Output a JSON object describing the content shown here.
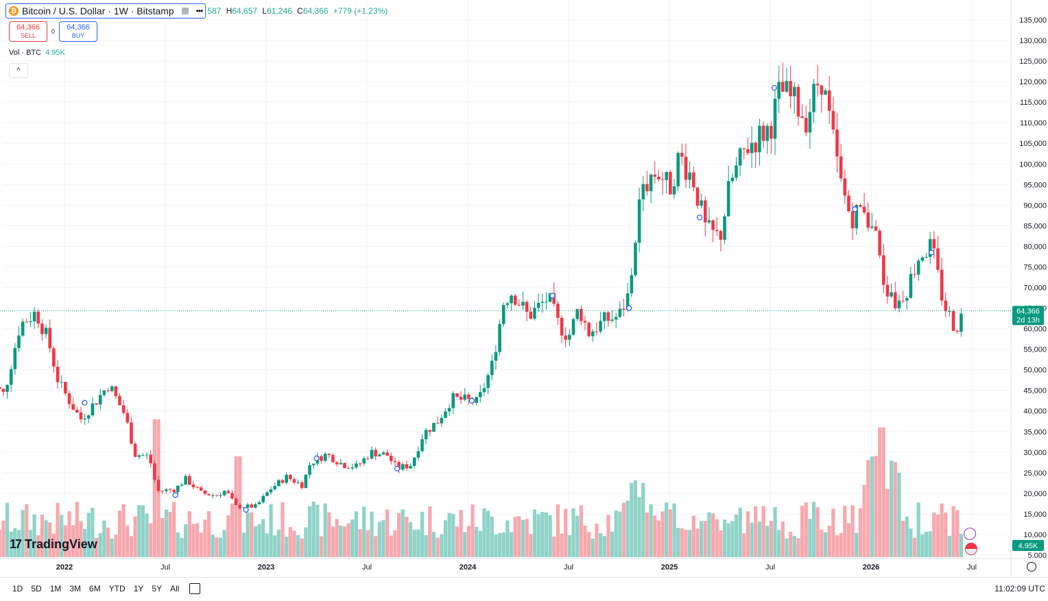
{
  "legend": {
    "symbol_icon": "bitcoin-coin-icon",
    "title": "Bitcoin / U.S. Dollar · 1W · Bitstamp",
    "ohlc": [
      {
        "k": "",
        "v": "587"
      },
      {
        "k": "H",
        "v": "64,657"
      },
      {
        "k": "L",
        "v": "61,246"
      },
      {
        "k": "C",
        "v": "64,366"
      },
      {
        "k": "",
        "v": "+779 (+1.23%)"
      }
    ]
  },
  "trade": {
    "sell_price": "64,366",
    "sell_label": "SELL",
    "spread": "0",
    "buy_price": "64,366",
    "buy_label": "BUY"
  },
  "volume": {
    "label": "Vol · BTC",
    "value": "4.95K"
  },
  "price_tag": {
    "price": "64,366",
    "countdown": "2d 13h"
  },
  "volume_tag": "4.95K",
  "logo": {
    "text": "TradingView"
  },
  "bottom": {
    "ranges": [
      "1D",
      "5D",
      "1M",
      "3M",
      "6M",
      "YTD",
      "1Y",
      "5Y",
      "All"
    ],
    "clock": "11:02:09 UTC"
  },
  "colors": {
    "up": "#089981",
    "down": "#f23645",
    "vol_up": "#8fd3c9",
    "vol_down": "#f7a8ae",
    "accent": "#2962ff"
  },
  "chart_data": {
    "type": "candlestick",
    "interval": "1W",
    "y_axis": {
      "min": 5000,
      "max": 135000,
      "step": 5000,
      "labels": [
        "135,000",
        "130,000",
        "125,000",
        "120,000",
        "115,000",
        "110,000",
        "105,000",
        "100,000",
        "95,000",
        "90,000",
        "85,000",
        "80,000",
        "75,000",
        "70,000",
        "65,000",
        "60,000",
        "55,000",
        "50,000",
        "45,000",
        "40,000",
        "35,000",
        "30,000",
        "25,000",
        "20,000",
        "15,000",
        "10,000",
        "5.000"
      ]
    },
    "x_axis": {
      "ticks": [
        {
          "label": "2022",
          "t": 2022.0,
          "bold": true
        },
        {
          "label": "Jul",
          "t": 2022.5,
          "bold": false
        },
        {
          "label": "2023",
          "t": 2023.0,
          "bold": true
        },
        {
          "label": "Jul",
          "t": 2023.5,
          "bold": false
        },
        {
          "label": "2024",
          "t": 2024.0,
          "bold": true
        },
        {
          "label": "Jul",
          "t": 2024.5,
          "bold": false
        },
        {
          "label": "2025",
          "t": 2025.0,
          "bold": true
        },
        {
          "label": "Jul",
          "t": 2025.5,
          "bold": false
        },
        {
          "label": "2026",
          "t": 2026.0,
          "bold": true
        },
        {
          "label": "Jul",
          "t": 2026.5,
          "bold": false
        }
      ]
    },
    "last_price": 64366,
    "price_path": [
      [
        2021.62,
        47000
      ],
      [
        2021.7,
        44000
      ],
      [
        2021.78,
        61000
      ],
      [
        2021.86,
        64000
      ],
      [
        2021.92,
        57000
      ],
      [
        2021.97,
        47000
      ],
      [
        2022.03,
        42000
      ],
      [
        2022.08,
        38000
      ],
      [
        2022.15,
        42000
      ],
      [
        2022.22,
        46500
      ],
      [
        2022.3,
        39000
      ],
      [
        2022.35,
        29500
      ],
      [
        2022.42,
        29000
      ],
      [
        2022.46,
        20500
      ],
      [
        2022.55,
        21000
      ],
      [
        2022.6,
        23500
      ],
      [
        2022.68,
        20000
      ],
      [
        2022.75,
        19500
      ],
      [
        2022.8,
        20700
      ],
      [
        2022.85,
        16800
      ],
      [
        2022.95,
        16800
      ],
      [
        2023.02,
        21000
      ],
      [
        2023.1,
        24000
      ],
      [
        2023.18,
        22000
      ],
      [
        2023.22,
        27500
      ],
      [
        2023.3,
        29500
      ],
      [
        2023.38,
        27000
      ],
      [
        2023.45,
        26500
      ],
      [
        2023.52,
        30000
      ],
      [
        2023.6,
        29300
      ],
      [
        2023.65,
        26000
      ],
      [
        2023.72,
        27000
      ],
      [
        2023.78,
        34500
      ],
      [
        2023.85,
        37500
      ],
      [
        2023.92,
        43000
      ],
      [
        2024.0,
        42500
      ],
      [
        2024.05,
        42000
      ],
      [
        2024.12,
        51000
      ],
      [
        2024.18,
        67000
      ],
      [
        2024.22,
        69000
      ],
      [
        2024.3,
        63000
      ],
      [
        2024.4,
        67500
      ],
      [
        2024.45,
        61000
      ],
      [
        2024.5,
        58000
      ],
      [
        2024.55,
        65000
      ],
      [
        2024.6,
        59000
      ],
      [
        2024.68,
        62000
      ],
      [
        2024.75,
        63000
      ],
      [
        2024.8,
        68500
      ],
      [
        2024.85,
        90000
      ],
      [
        2024.9,
        97000
      ],
      [
        2024.95,
        98000
      ],
      [
        2025.0,
        94000
      ],
      [
        2025.05,
        102000
      ],
      [
        2025.12,
        96000
      ],
      [
        2025.18,
        84000
      ],
      [
        2025.25,
        82000
      ],
      [
        2025.3,
        95000
      ],
      [
        2025.38,
        104000
      ],
      [
        2025.45,
        107000
      ],
      [
        2025.5,
        109000
      ],
      [
        2025.55,
        118000
      ],
      [
        2025.62,
        115000
      ],
      [
        2025.68,
        111000
      ],
      [
        2025.75,
        122000
      ],
      [
        2025.8,
        109000
      ],
      [
        2025.85,
        95000
      ],
      [
        2025.9,
        87000
      ],
      [
        2025.97,
        90000
      ],
      [
        2026.02,
        82000
      ],
      [
        2026.07,
        70000
      ],
      [
        2026.12,
        66000
      ],
      [
        2026.18,
        70000
      ],
      [
        2026.24,
        78000
      ],
      [
        2026.3,
        80000
      ],
      [
        2026.36,
        66000
      ],
      [
        2026.42,
        60000
      ],
      [
        2026.46,
        64366
      ]
    ],
    "volume_note": "weekly volume bars at bottom; peaks near 2026.05 (~36,000 scale units)",
    "events": [
      {
        "t": 2021.62,
        "price": 45000
      },
      {
        "t": 2022.1,
        "price": 42000
      },
      {
        "t": 2022.55,
        "price": 19600
      },
      {
        "t": 2022.9,
        "price": 16000
      },
      {
        "t": 2023.25,
        "price": 28500
      },
      {
        "t": 2023.65,
        "price": 26000
      },
      {
        "t": 2024.02,
        "price": 42500
      },
      {
        "t": 2024.42,
        "price": 68000
      },
      {
        "t": 2024.8,
        "price": 65000
      },
      {
        "t": 2025.15,
        "price": 87000
      },
      {
        "t": 2025.52,
        "price": 118500
      },
      {
        "t": 2025.92,
        "price": 89000
      },
      {
        "t": 2026.3,
        "price": 78500
      }
    ]
  }
}
